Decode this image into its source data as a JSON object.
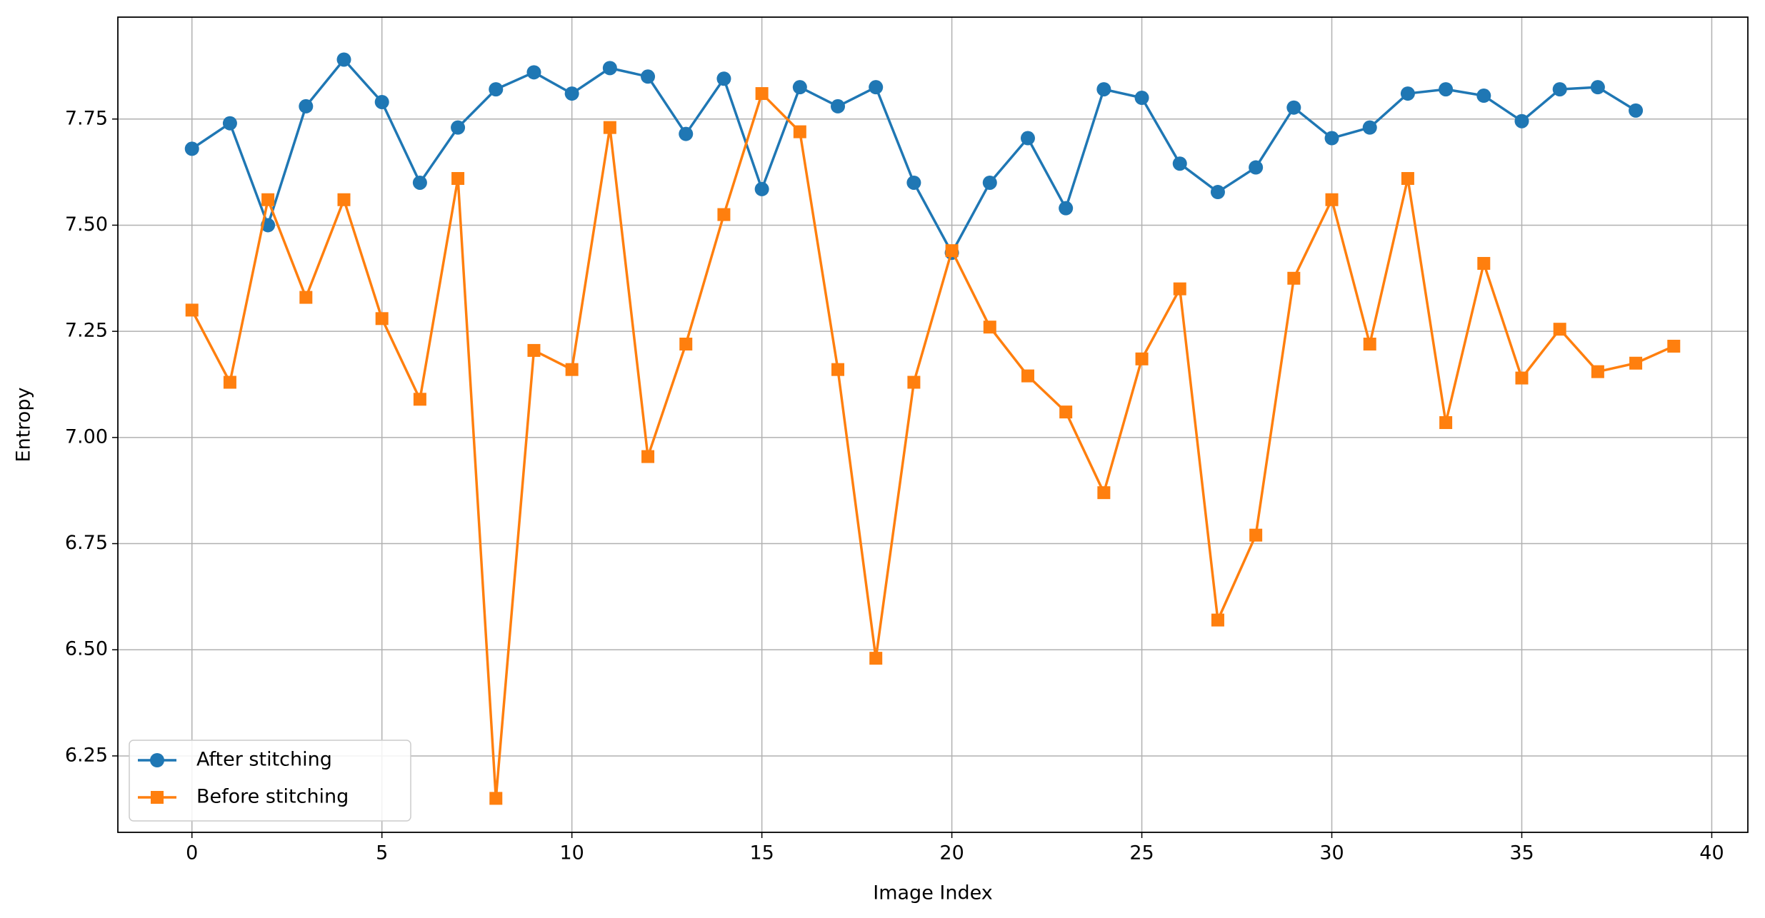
{
  "chart_data": {
    "type": "line",
    "xlabel": "Image Index",
    "ylabel": "Entropy",
    "x": [
      0,
      1,
      2,
      3,
      4,
      5,
      6,
      7,
      8,
      9,
      10,
      11,
      12,
      13,
      14,
      15,
      16,
      17,
      18,
      19,
      20,
      21,
      22,
      23,
      24,
      25,
      26,
      27,
      28,
      29,
      30,
      31,
      32,
      33,
      34,
      35,
      36,
      37,
      38,
      39
    ],
    "series": [
      {
        "name": "After stitching",
        "color": "#1f77b4",
        "marker": "circle",
        "values": [
          7.68,
          7.74,
          7.5,
          7.78,
          7.89,
          7.79,
          7.6,
          7.73,
          7.82,
          7.86,
          7.81,
          7.87,
          7.85,
          7.715,
          7.845,
          7.585,
          7.825,
          7.78,
          7.825,
          7.6,
          7.435,
          7.6,
          7.705,
          7.54,
          7.82,
          7.8,
          7.645,
          7.578,
          7.636,
          7.777,
          7.705,
          7.73,
          7.81,
          7.82,
          7.805,
          7.745,
          7.82,
          7.825,
          7.77,
          null
        ]
      },
      {
        "name": "Before stitching",
        "color": "#ff7f0e",
        "marker": "square",
        "values": [
          7.3,
          7.13,
          7.56,
          7.33,
          7.56,
          7.28,
          7.09,
          7.61,
          6.15,
          7.205,
          7.16,
          7.73,
          6.955,
          7.22,
          7.525,
          7.81,
          7.72,
          7.16,
          6.48,
          7.13,
          7.44,
          7.26,
          7.145,
          7.06,
          6.87,
          7.185,
          7.35,
          6.57,
          6.77,
          7.375,
          7.56,
          7.22,
          7.61,
          7.035,
          7.41,
          7.14,
          7.255,
          7.155,
          7.175,
          7.215
        ]
      }
    ],
    "xlim": [
      -1.95,
      40.95
    ],
    "xticks": [
      0,
      5,
      10,
      15,
      20,
      25,
      30,
      35,
      40
    ],
    "ylim": [
      6.07,
      7.99
    ],
    "yticks": [
      6.25,
      {
        "value": 6.5,
        "label": "6.50"
      },
      6.75,
      {
        "value": 7.0,
        "label": "7.00"
      },
      7.25,
      {
        "value": 7.5,
        "label": "7.50"
      },
      7.75
    ],
    "grid": true,
    "legend": "lower left"
  }
}
